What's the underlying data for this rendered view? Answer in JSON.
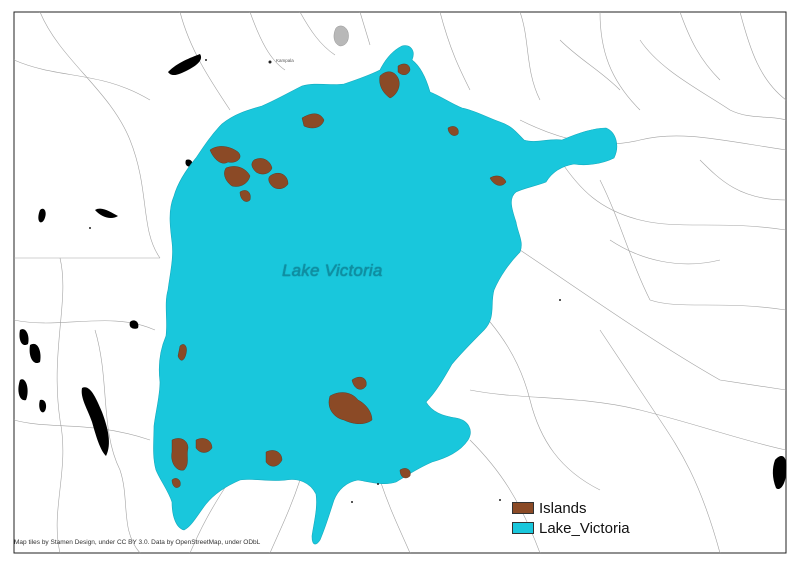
{
  "map": {
    "lake_label": "Lake Victoria",
    "city_label": "Kampala",
    "legend": [
      {
        "label": "Islands",
        "color": "#8b4a26"
      },
      {
        "label": "Lake_Victoria",
        "color": "#19c7dc"
      }
    ],
    "attribution": "Map tiles by Stamen Design, under CC BY 3.0. Data by OpenStreetMap, under ODbL",
    "colors": {
      "water": "#19c7dc",
      "islands": "#8b4a26",
      "boundaries": "#9a9a9a",
      "black_features": "#000000",
      "background": "#ffffff"
    }
  }
}
